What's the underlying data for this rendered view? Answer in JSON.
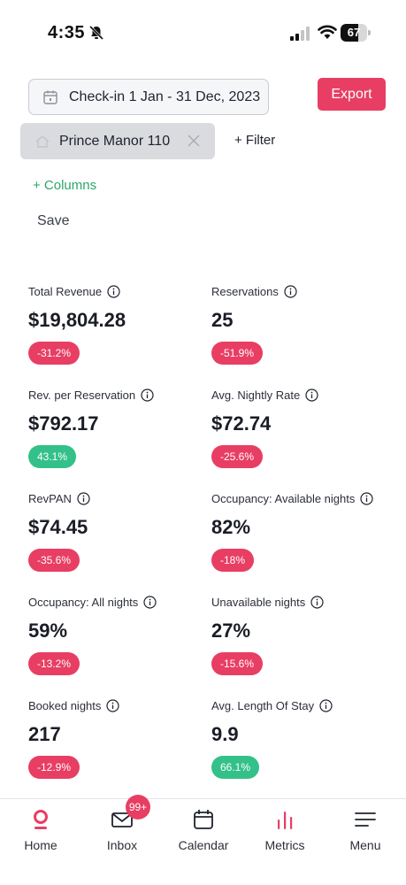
{
  "status_bar": {
    "time": "4:35",
    "battery": "67",
    "battery_level": 0.67
  },
  "filters": {
    "date_range_label": "Check-in 1 Jan - 31 Dec, 2023",
    "export_label": "Export",
    "property_chip_label": "Prince Manor 110",
    "add_filter_label": "+ Filter",
    "add_columns_label": "+ Columns",
    "save_label": "Save"
  },
  "metrics": [
    {
      "label": "Total Revenue",
      "value": "$19,804.28",
      "change": "-31.2%",
      "trend": "negative"
    },
    {
      "label": "Reservations",
      "value": "25",
      "change": "-51.9%",
      "trend": "negative"
    },
    {
      "label": "Rev. per Reservation",
      "value": "$792.17",
      "change": "43.1%",
      "trend": "positive"
    },
    {
      "label": "Avg. Nightly Rate",
      "value": "$72.74",
      "change": "-25.6%",
      "trend": "negative"
    },
    {
      "label": "RevPAN",
      "value": "$74.45",
      "change": "-35.6%",
      "trend": "negative"
    },
    {
      "label": "Occupancy: Available nights",
      "value": "82%",
      "change": "-18%",
      "trend": "negative"
    },
    {
      "label": "Occupancy: All nights",
      "value": "59%",
      "change": "-13.2%",
      "trend": "negative"
    },
    {
      "label": "Unavailable nights",
      "value": "27%",
      "change": "-15.6%",
      "trend": "negative"
    },
    {
      "label": "Booked nights",
      "value": "217",
      "change": "-12.9%",
      "trend": "negative"
    },
    {
      "label": "Avg. Length Of Stay",
      "value": "9.9",
      "change": "66.1%",
      "trend": "positive"
    }
  ],
  "bottom_nav": {
    "items": [
      {
        "label": "Home",
        "icon": "home-pin-icon",
        "active": true
      },
      {
        "label": "Inbox",
        "icon": "envelope-icon",
        "badge": "99+"
      },
      {
        "label": "Calendar",
        "icon": "calendar-icon"
      },
      {
        "label": "Metrics",
        "icon": "bar-chart-icon"
      },
      {
        "label": "Menu",
        "icon": "hamburger-menu-icon"
      }
    ]
  },
  "colors": {
    "accent": "#e83e63",
    "positive": "#33c189",
    "link_green": "#2aa86a"
  }
}
